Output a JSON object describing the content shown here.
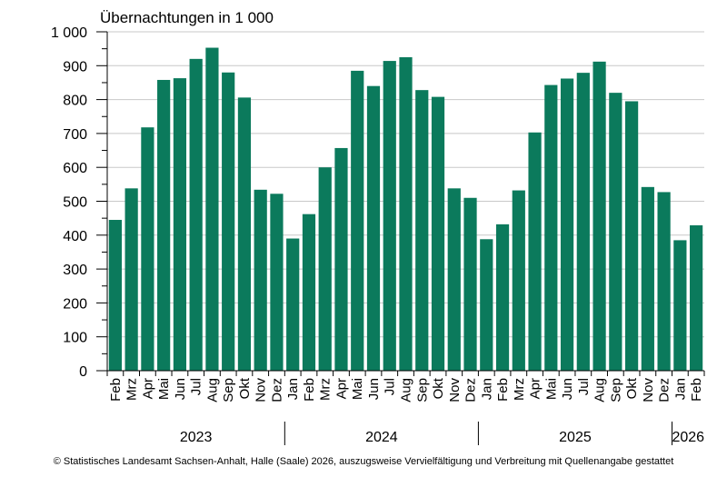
{
  "chart_data": {
    "type": "bar",
    "ylabel": "Übernachtungen in 1 000",
    "ylim": [
      0,
      1000
    ],
    "yticks": [
      0,
      100,
      200,
      300,
      400,
      500,
      600,
      700,
      800,
      900,
      1000
    ],
    "ytick_labels": [
      "0",
      "100",
      "200",
      "300",
      "400",
      "500",
      "600",
      "700",
      "800",
      "900",
      "1 000"
    ],
    "grid": "horizontal",
    "bar_color": "#0b7a5c",
    "categories": [
      "Feb",
      "Mrz",
      "Apr",
      "Mai",
      "Jun",
      "Jul",
      "Aug",
      "Sep",
      "Okt",
      "Nov",
      "Dez",
      "Jan",
      "Feb",
      "Mrz",
      "Apr",
      "Mai",
      "Jun",
      "Jul",
      "Aug",
      "Sep",
      "Okt",
      "Nov",
      "Dez",
      "Jan",
      "Feb",
      "Mrz",
      "Apr",
      "Mai",
      "Jun",
      "Jul",
      "Aug",
      "Sep",
      "Okt",
      "Nov",
      "Dez",
      "Jan",
      "Feb"
    ],
    "values": [
      445,
      538,
      718,
      858,
      863,
      920,
      953,
      880,
      806,
      534,
      522,
      390,
      462,
      600,
      657,
      885,
      840,
      914,
      925,
      828,
      808,
      538,
      510,
      388,
      432,
      532,
      703,
      843,
      862,
      879,
      912,
      820,
      795,
      542,
      527,
      385,
      429
    ],
    "years": [
      {
        "label": "2023",
        "start": 0,
        "count": 11
      },
      {
        "label": "2024",
        "start": 11,
        "count": 12
      },
      {
        "label": "2025",
        "start": 23,
        "count": 12
      },
      {
        "label": "2026",
        "start": 35,
        "count": 2
      }
    ]
  },
  "source": "© Statistisches Landesamt Sachsen-Anhalt, Halle (Saale) 2026, auszugsweise Vervielfältigung und Verbreitung mit Quellenangabe gestattet"
}
